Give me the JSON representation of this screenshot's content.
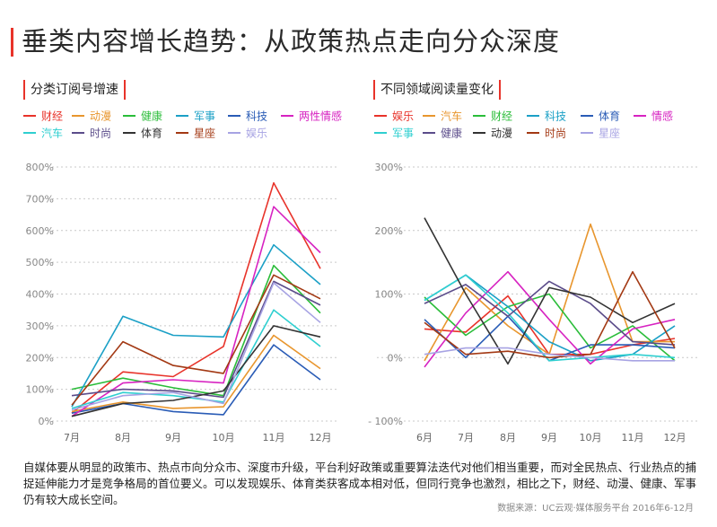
{
  "title": "垂类内容增长趋势：从政策热点走向分众深度",
  "description": "自媒体要从明显的政策市、热点市向分众市、深度市升级，平台利好政策或重要算法迭代对他们相当重要，而对全民热点、行业热点的捕捉延伸能力才是竞争格局的首位要义。可以发现娱乐、体育类获客成本相对低，但同行竞争也激烈，相比之下，财经、动漫、健康、军事仍有较大成长空间。",
  "source": "数据来源：UC云观·媒体服务平台 2016年6-12月",
  "colors": {
    "accent": "#e8332a"
  },
  "chart_data": [
    {
      "type": "line",
      "title": "分类订阅号增速",
      "xlabel": "",
      "ylabel": "",
      "categories": [
        "7月",
        "8月",
        "9月",
        "10月",
        "11月",
        "12月"
      ],
      "ylim": [
        0,
        800
      ],
      "yticks": [
        0,
        100,
        200,
        300,
        400,
        500,
        600,
        700,
        800
      ],
      "ytick_labels": [
        "0%",
        "100%",
        "200%",
        "300%",
        "400%",
        "500%",
        "600%",
        "700%",
        "800%"
      ],
      "grid": "horizontal dashed",
      "legend_position": "top",
      "series": [
        {
          "name": "财经",
          "color": "#e8332a",
          "values": [
            25,
            155,
            140,
            235,
            750,
            480
          ]
        },
        {
          "name": "动漫",
          "color": "#e8962e",
          "values": [
            30,
            60,
            40,
            45,
            270,
            165
          ]
        },
        {
          "name": "健康",
          "color": "#2bbd3a",
          "values": [
            100,
            135,
            105,
            80,
            490,
            340
          ]
        },
        {
          "name": "军事",
          "color": "#1ba0c6",
          "values": [
            45,
            330,
            270,
            265,
            555,
            430
          ]
        },
        {
          "name": "科技",
          "color": "#2a5cb6",
          "values": [
            25,
            55,
            30,
            20,
            240,
            130
          ]
        },
        {
          "name": "两性情感",
          "color": "#d723c1",
          "values": [
            15,
            120,
            130,
            120,
            675,
            530
          ]
        },
        {
          "name": "汽车",
          "color": "#2fcfd0",
          "values": [
            40,
            90,
            80,
            60,
            350,
            235
          ]
        },
        {
          "name": "时尚",
          "color": "#5b4c8a",
          "values": [
            80,
            100,
            95,
            75,
            440,
            365
          ]
        },
        {
          "name": "体育",
          "color": "#333333",
          "values": [
            15,
            55,
            65,
            95,
            300,
            265
          ]
        },
        {
          "name": "星座",
          "color": "#a33914",
          "values": [
            50,
            250,
            175,
            150,
            460,
            385
          ]
        },
        {
          "name": "娱乐",
          "color": "#a7a3e3",
          "values": [
            35,
            80,
            90,
            55,
            435,
            310
          ]
        }
      ]
    },
    {
      "type": "line",
      "title": "不同领域阅读量变化",
      "xlabel": "",
      "ylabel": "",
      "categories": [
        "6月",
        "7月",
        "8月",
        "9月",
        "10月",
        "11月",
        "12月"
      ],
      "ylim": [
        -100,
        300
      ],
      "yticks": [
        -100,
        0,
        100,
        200,
        300
      ],
      "ytick_labels": [
        "- 100%",
        "0%",
        "100%",
        "200%",
        "300%"
      ],
      "grid": "horizontal dashed",
      "legend_position": "top",
      "series": [
        {
          "name": "娱乐",
          "color": "#e8332a",
          "values": [
            45,
            40,
            97,
            5,
            5,
            20,
            30
          ]
        },
        {
          "name": "汽车",
          "color": "#e8962e",
          "values": [
            -5,
            110,
            50,
            5,
            210,
            25,
            25
          ]
        },
        {
          "name": "财经",
          "color": "#2bbd3a",
          "values": [
            95,
            35,
            80,
            100,
            15,
            50,
            -5
          ]
        },
        {
          "name": "科技",
          "color": "#1ba0c6",
          "values": [
            90,
            130,
            80,
            25,
            -5,
            5,
            50
          ]
        },
        {
          "name": "体育",
          "color": "#2a5cb6",
          "values": [
            60,
            0,
            65,
            -5,
            20,
            20,
            15
          ]
        },
        {
          "name": "情感",
          "color": "#d723c1",
          "values": [
            -15,
            70,
            135,
            60,
            -10,
            45,
            60
          ]
        },
        {
          "name": "军事",
          "color": "#2fcfd0",
          "values": [
            90,
            130,
            70,
            -5,
            0,
            5,
            0
          ]
        },
        {
          "name": "健康",
          "color": "#5b4c8a",
          "values": [
            85,
            115,
            65,
            120,
            85,
            25,
            20
          ]
        },
        {
          "name": "动漫",
          "color": "#333333",
          "values": [
            220,
            100,
            -10,
            110,
            95,
            55,
            85
          ]
        },
        {
          "name": "时尚",
          "color": "#a33914",
          "values": [
            55,
            5,
            10,
            0,
            5,
            135,
            15
          ]
        },
        {
          "name": "星座",
          "color": "#a7a3e3",
          "values": [
            5,
            15,
            15,
            5,
            0,
            -5,
            -5
          ]
        }
      ]
    }
  ]
}
